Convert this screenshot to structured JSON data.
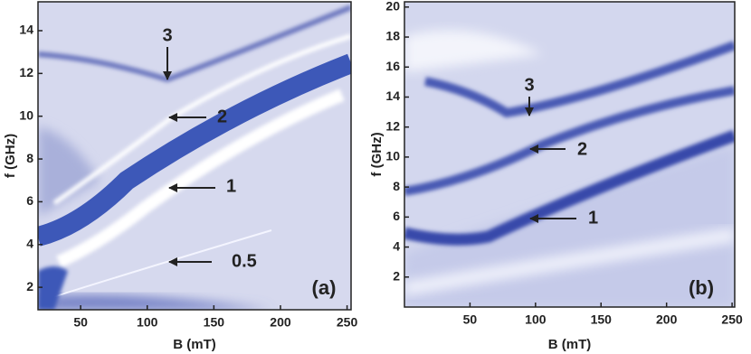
{
  "chart_data": [
    {
      "type": "heatmap",
      "xlabel": "B (mT)",
      "ylabel": "f (GHz)",
      "panel_label": "(a)",
      "xlim": [
        18,
        253
      ],
      "xticks": [
        50,
        100,
        150,
        200,
        250
      ],
      "ylim": [
        0.95,
        15.35
      ],
      "yticks": [
        2,
        4,
        6,
        8,
        10,
        12,
        14
      ],
      "annotations": [
        "3",
        "2",
        "1",
        "0.5"
      ]
    },
    {
      "type": "heatmap",
      "xlabel": "B (mT)",
      "ylabel": "f (GHz)",
      "panel_label": "(b)",
      "xlim": [
        0,
        252
      ],
      "xticks": [
        50,
        100,
        150,
        200,
        250
      ],
      "ylim": [
        0,
        20.35
      ],
      "yticks": [
        2,
        4,
        6,
        8,
        10,
        12,
        14,
        16,
        18,
        20
      ],
      "annotations": [
        "3",
        "2",
        "1"
      ]
    }
  ]
}
